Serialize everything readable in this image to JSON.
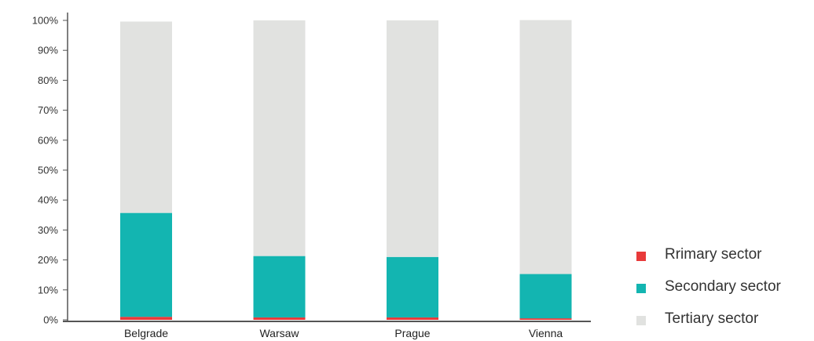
{
  "chart_data": {
    "type": "bar",
    "stacked": true,
    "categories": [
      "Belgrade",
      "Warsaw",
      "Prague",
      "Vienna"
    ],
    "series": [
      {
        "name": "Rrimary sector",
        "color": "#e83a3a",
        "values": [
          1.0,
          0.8,
          0.8,
          0.5
        ]
      },
      {
        "name": "Secondary sector",
        "color": "#13b5b1",
        "values": [
          34.7,
          20.5,
          20.2,
          14.8
        ]
      },
      {
        "name": "Tertiary sector",
        "color": "#e1e2e0",
        "values": [
          63.9,
          78.7,
          79.0,
          84.8
        ]
      }
    ],
    "yticks": [
      "0%",
      "10%",
      "20%",
      "30%",
      "40%",
      "50%",
      "60%",
      "70%",
      "80%",
      "90%",
      "100%"
    ],
    "ylim": [
      0,
      100
    ],
    "grid": false,
    "legend_position": "bottom-right"
  }
}
